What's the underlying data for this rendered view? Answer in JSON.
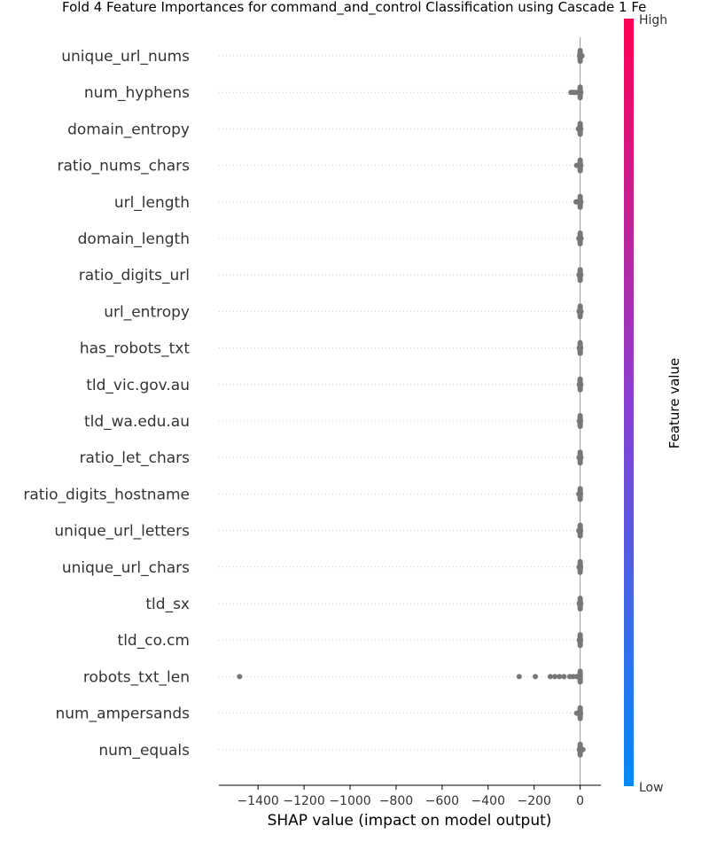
{
  "chart_data": {
    "type": "scatter",
    "title": "Fold 4 Feature Importances for command_and_control Classification using Cascade 1 Fe",
    "xlabel": "SHAP value (impact on model output)",
    "xlim": [
      -1570,
      90
    ],
    "xticks": [
      -1400,
      -1200,
      -1000,
      -800,
      -600,
      -400,
      -200,
      0
    ],
    "xtick_labels": [
      "−1400",
      "−1200",
      "−1000",
      "−800",
      "−600",
      "−400",
      "−200",
      "0"
    ],
    "grid": false,
    "features": [
      {
        "name": "unique_url_nums",
        "points": [
          0,
          2,
          5,
          -3,
          8
        ]
      },
      {
        "name": "num_hyphens",
        "points": [
          -40,
          -30,
          -20,
          -10,
          -5,
          0,
          3
        ]
      },
      {
        "name": "domain_entropy",
        "points": [
          -8,
          -5,
          0,
          3
        ]
      },
      {
        "name": "ratio_nums_chars",
        "points": [
          -15,
          -10,
          -5,
          0,
          3
        ]
      },
      {
        "name": "url_length",
        "points": [
          -18,
          -12,
          -6,
          0,
          3
        ]
      },
      {
        "name": "domain_length",
        "points": [
          -6,
          -3,
          0,
          4
        ]
      },
      {
        "name": "ratio_digits_url",
        "points": [
          -5,
          -2,
          0,
          3
        ]
      },
      {
        "name": "url_entropy",
        "points": [
          -5,
          -2,
          0,
          4
        ]
      },
      {
        "name": "has_robots_txt",
        "points": [
          -4,
          -2,
          0,
          2
        ]
      },
      {
        "name": "tld_vic.gov.au",
        "points": [
          -4,
          -2,
          0,
          3
        ]
      },
      {
        "name": "tld_wa.edu.au",
        "points": [
          -4,
          -2,
          0,
          2
        ]
      },
      {
        "name": "ratio_let_chars",
        "points": [
          -5,
          -2,
          0,
          3
        ]
      },
      {
        "name": "ratio_digits_hostname",
        "points": [
          -6,
          -3,
          0,
          2
        ]
      },
      {
        "name": "unique_url_letters",
        "points": [
          -6,
          -3,
          0,
          2
        ]
      },
      {
        "name": "unique_url_chars",
        "points": [
          -5,
          -2,
          0,
          2
        ]
      },
      {
        "name": "tld_sx",
        "points": [
          -4,
          -2,
          0,
          3
        ]
      },
      {
        "name": "tld_co.cm",
        "points": [
          -4,
          -2,
          0,
          2
        ]
      },
      {
        "name": "robots_txt_len",
        "points": [
          -1480,
          -265,
          -195,
          -130,
          -110,
          -90,
          -70,
          -45,
          -30,
          -15,
          -5,
          0
        ]
      },
      {
        "name": "num_ampersands",
        "points": [
          -15,
          -10,
          -5,
          0,
          2
        ]
      },
      {
        "name": "num_equals",
        "points": [
          -4,
          0,
          3,
          12
        ]
      }
    ],
    "point_color": "#777777",
    "colorbar": {
      "label": "Feature value",
      "high_label": "High",
      "low_label": "Low",
      "high_color": "#ff0052",
      "mid_color": "#8a3fd3",
      "low_color": "#008afb"
    }
  }
}
